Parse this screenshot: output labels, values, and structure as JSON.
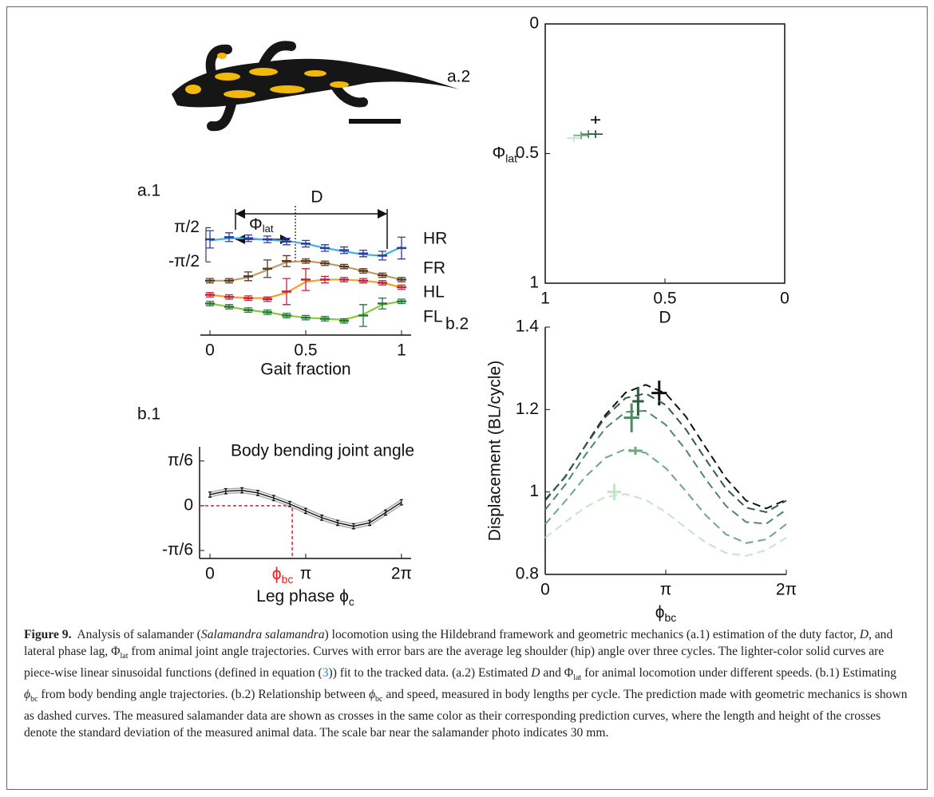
{
  "chart_data": [
    {
      "type": "line",
      "panel": "a.1",
      "xlabel": "Gait fraction",
      "annotations": {
        "duty": "D",
        "phase": "Φ",
        "phase_sub": "lat"
      },
      "x": [
        0,
        0.1,
        0.2,
        0.3,
        0.4,
        0.5,
        0.6,
        0.7,
        0.8,
        0.9,
        1
      ],
      "xlim": [
        -0.05,
        1.05
      ],
      "xticks": [
        0,
        0.5,
        1
      ],
      "ylim": [
        -8.3,
        4.9
      ],
      "yticks": [
        {
          "value": 1.5708,
          "label": "π/2"
        },
        {
          "value": -1.5708,
          "label": "-π/2"
        }
      ],
      "series": [
        {
          "name": "HR",
          "color": "#2b3c9e",
          "fit_color": "#3fb0e6",
          "values": [
            0.5,
            0.7,
            0.6,
            0.5,
            0.3,
            0.1,
            -0.3,
            -0.5,
            -0.8,
            -1.0,
            -0.3
          ],
          "errors": [
            0.8,
            0.4,
            0.3,
            0.3,
            0.3,
            0.3,
            0.3,
            0.3,
            0.3,
            0.4,
            1.0
          ],
          "fit_values": [
            0.4,
            0.6,
            0.6,
            0.45,
            0.35,
            0.1,
            -0.3,
            -0.6,
            -0.9,
            -1.0,
            -0.2
          ]
        },
        {
          "name": "FR",
          "color": "#5a3a1e",
          "fit_color": "#c49a6c",
          "values": [
            -3.3,
            -3.3,
            -2.9,
            -2.2,
            -1.5,
            -1.5,
            -1.7,
            -2.0,
            -2.4,
            -2.8,
            -3.2
          ],
          "errors": [
            0.2,
            0.2,
            0.4,
            0.8,
            0.5,
            0.2,
            0.2,
            0.2,
            0.2,
            0.2,
            0.2
          ],
          "fit_values": [
            -3.3,
            -3.3,
            -3.0,
            -2.3,
            -1.6,
            -1.5,
            -1.7,
            -2.0,
            -2.4,
            -2.8,
            -3.2
          ]
        },
        {
          "name": "HL",
          "color": "#c4203a",
          "fit_color": "#f5a020",
          "values": [
            -4.6,
            -4.8,
            -4.9,
            -5.0,
            -4.3,
            -3.2,
            -3.2,
            -3.2,
            -3.3,
            -3.5,
            -3.9
          ],
          "errors": [
            0.2,
            0.2,
            0.2,
            0.2,
            1.2,
            1.0,
            0.3,
            0.2,
            0.2,
            0.2,
            0.2
          ],
          "fit_values": [
            -4.6,
            -4.8,
            -4.9,
            -4.9,
            -4.4,
            -3.4,
            -3.2,
            -3.2,
            -3.3,
            -3.5,
            -3.9
          ]
        },
        {
          "name": "FL",
          "color": "#1f7a34",
          "fit_color": "#8cc83c",
          "values": [
            -5.4,
            -5.7,
            -6.0,
            -6.2,
            -6.5,
            -6.7,
            -6.8,
            -7.0,
            -6.5,
            -5.4,
            -5.2
          ],
          "errors": [
            0.2,
            0.2,
            0.2,
            0.2,
            0.2,
            0.2,
            0.2,
            0.2,
            1.0,
            0.5,
            0.2
          ],
          "fit_values": [
            -5.4,
            -5.7,
            -6.0,
            -6.2,
            -6.5,
            -6.7,
            -6.8,
            -6.9,
            -6.4,
            -5.5,
            -5.2
          ]
        }
      ]
    },
    {
      "type": "line",
      "panel": "b.1",
      "title": "Body bending joint angle",
      "xlabel": "Leg phase ϕ",
      "xlabel_sub": "c",
      "x": [
        0,
        0.52,
        1.05,
        1.57,
        2.09,
        2.62,
        3.14,
        3.67,
        4.19,
        4.71,
        5.24,
        5.76,
        6.28
      ],
      "xlim": [
        -0.34,
        6.6
      ],
      "xticks": [
        0,
        {
          "value": 3.1416,
          "label": "π"
        },
        {
          "value": 6.2832,
          "label": "2π"
        }
      ],
      "ylim": [
        -0.617,
        0.69
      ],
      "yticks": [
        {
          "value": 0.5236,
          "label": "π/6"
        },
        0,
        {
          "value": -0.5236,
          "label": "-π/6"
        }
      ],
      "series": [
        {
          "color": "#111111",
          "band_color": "#a8a8a8",
          "values": [
            0.13,
            0.17,
            0.18,
            0.15,
            0.09,
            0.02,
            -0.06,
            -0.14,
            -0.2,
            -0.24,
            -0.2,
            -0.08,
            0.04
          ],
          "errors": [
            0.03,
            0.03,
            0.03,
            0.03,
            0.03,
            0.03,
            0.03,
            0.03,
            0.03,
            0.03,
            0.03,
            0.03,
            0.03
          ]
        }
      ],
      "marker": {
        "x": 2.7,
        "y": 0,
        "label": "ϕ",
        "label_sub": "bc",
        "color": "#e0201e"
      }
    },
    {
      "type": "scatter",
      "panel": "a.2",
      "xlabel": "D",
      "ylabel": "Φ",
      "ylabel_sub": "lat",
      "xlim": [
        1,
        0
      ],
      "xticks": [
        1,
        0.5,
        0
      ],
      "ylim": [
        1,
        0
      ],
      "yticks": [
        0,
        0.5,
        1
      ],
      "series": [
        {
          "color": "#c3e6c8",
          "x": [
            0.88
          ],
          "y": [
            0.44
          ],
          "xerr": [
            0.03
          ],
          "yerr": [
            0.015
          ]
        },
        {
          "color": "#6ea880",
          "x": [
            0.85
          ],
          "y": [
            0.43
          ],
          "xerr": [
            0.03
          ],
          "yerr": [
            0.015
          ]
        },
        {
          "color": "#4b8a62",
          "x": [
            0.82
          ],
          "y": [
            0.425
          ],
          "xerr": [
            0.03
          ],
          "yerr": [
            0.015
          ]
        },
        {
          "color": "#2f5d43",
          "x": [
            0.79
          ],
          "y": [
            0.425
          ],
          "xerr": [
            0.03
          ],
          "yerr": [
            0.015
          ]
        },
        {
          "color": "#111111",
          "x": [
            0.79
          ],
          "y": [
            0.37
          ],
          "xerr": [
            0.02
          ],
          "yerr": [
            0.015
          ]
        }
      ]
    },
    {
      "type": "line",
      "panel": "b.2",
      "xlabel": "ϕ",
      "xlabel_sub": "bc",
      "ylabel": "Displacement (BL/cycle)",
      "x": [
        0,
        0.524,
        1.047,
        1.571,
        2.094,
        2.618,
        3.142,
        3.665,
        4.189,
        4.712,
        5.236,
        5.76,
        6.283
      ],
      "xlim": [
        0,
        6.2832
      ],
      "xticks": [
        0,
        {
          "value": 3.1416,
          "label": "π"
        },
        {
          "value": 6.2832,
          "label": "2π"
        }
      ],
      "ylim": [
        0.8,
        1.4
      ],
      "yticks": [
        0.8,
        1,
        1.2,
        1.4
      ],
      "series": [
        {
          "color": "#111111",
          "dashed": true,
          "values": [
            0.981,
            1.037,
            1.113,
            1.187,
            1.241,
            1.26,
            1.239,
            1.183,
            1.107,
            1.033,
            0.979,
            0.96,
            0.981
          ],
          "cross": {
            "x": 2.97,
            "y": 1.24,
            "xerr": 0.2,
            "yerr": 0.03
          }
        },
        {
          "color": "#2f5d43",
          "dashed": true,
          "values": [
            0.979,
            1.038,
            1.112,
            1.182,
            1.228,
            1.239,
            1.211,
            1.152,
            1.078,
            1.008,
            0.962,
            0.951,
            0.979
          ],
          "cross": {
            "x": 2.42,
            "y": 1.22,
            "xerr": 0.15,
            "yerr": 0.035
          }
        },
        {
          "color": "#4b8a62",
          "dashed": true,
          "values": [
            0.957,
            1.018,
            1.09,
            1.155,
            1.194,
            1.197,
            1.163,
            1.102,
            1.03,
            0.966,
            0.927,
            0.923,
            0.957
          ],
          "cross": {
            "x": 2.25,
            "y": 1.18,
            "xerr": 0.2,
            "yerr": 0.035
          }
        },
        {
          "color": "#6ea880",
          "dashed": true,
          "values": [
            0.922,
            0.978,
            1.037,
            1.083,
            1.104,
            1.095,
            1.058,
            1.002,
            0.943,
            0.897,
            0.876,
            0.885,
            0.922
          ],
          "cross": {
            "x": 2.35,
            "y": 1.1,
            "xerr": 0.18,
            "yerr": 0.01
          }
        },
        {
          "color": "#c3e6c8",
          "dashed": true,
          "values": [
            0.889,
            0.927,
            0.963,
            0.988,
            0.995,
            0.981,
            0.951,
            0.913,
            0.877,
            0.852,
            0.845,
            0.859,
            0.889
          ],
          "cross": {
            "x": 1.8,
            "y": 1.0,
            "xerr": 0.18,
            "yerr": 0.02
          }
        }
      ]
    }
  ],
  "caption": [
    {
      "text": "Figure 9.",
      "style": "bold"
    },
    {
      "text": "  Analysis of salamander ("
    },
    {
      "text": "Salamandra salamandra",
      "style": "italic"
    },
    {
      "text": ") locomotion using the Hildebrand framework and geometric mechanics (a.1) estimation of the duty factor, "
    },
    {
      "text": "D",
      "style": "italic"
    },
    {
      "text": ", and lateral phase lag, Φ"
    },
    {
      "text": "lat",
      "style": "sub"
    },
    {
      "text": " from animal joint angle trajectories. Curves with error bars are the average leg shoulder (hip) angle over three cycles. The lighter-color solid curves are piece-wise linear sinusoidal functions (defined in equation ("
    },
    {
      "text": "3",
      "style": "link"
    },
    {
      "text": ")) fit to the tracked data. (a.2) Estimated "
    },
    {
      "text": "D",
      "style": "italic"
    },
    {
      "text": " and Φ"
    },
    {
      "text": "lat",
      "style": "sub"
    },
    {
      "text": " for animal locomotion under different speeds. (b.1) Estimating "
    },
    {
      "text": "ϕ",
      "style": "italic"
    },
    {
      "text": "bc",
      "style": "sub"
    },
    {
      "text": " from body bending angle trajectories. (b.2) Relationship between "
    },
    {
      "text": "ϕ",
      "style": "italic"
    },
    {
      "text": "bc",
      "style": "sub"
    },
    {
      "text": " and speed, measured in body lengths per cycle. The prediction made with geometric mechanics is shown as dashed curves. The measured salamander data are shown as crosses in the same color as their corresponding prediction curves, where the length and height of the crosses denote the standard deviation of the measured animal data. The scale bar near the salamander photo indicates 30 mm."
    }
  ]
}
